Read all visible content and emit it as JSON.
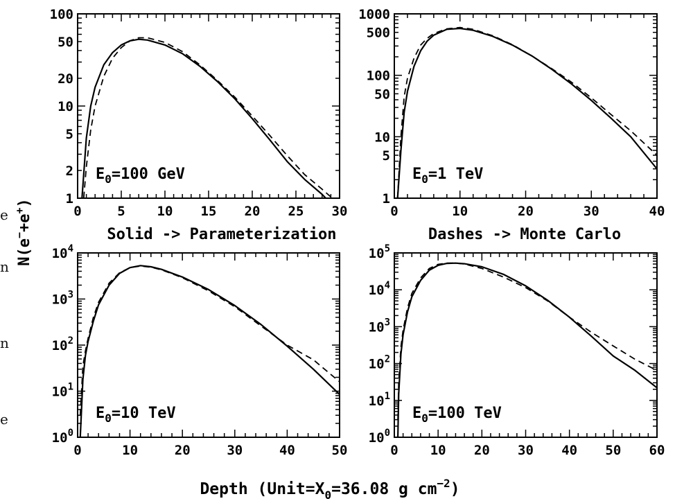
{
  "left_margin_fragments": [
    "e",
    "n",
    "n",
    "e"
  ],
  "ylabel": {
    "base": "N(e",
    "sup1": "−",
    "mid": "+e",
    "sup2": "+",
    "end": ")"
  },
  "xlabel": {
    "pre": "Depth (Unit=X",
    "sub": "0",
    "mid": "=36.08 g cm",
    "sup": "−2",
    "end": ")"
  },
  "notes": {
    "solid": "Solid -> Parameterization",
    "dashes": "Dashes -> Monte Carlo"
  },
  "chart_data": [
    {
      "type": "line",
      "panel": "top-left",
      "energy_label": {
        "base": "E",
        "sub": "0",
        "rest": "=100 GeV"
      },
      "xlim": [
        0,
        30
      ],
      "ylim": [
        1,
        100
      ],
      "yscale": "log",
      "xticks": [
        0,
        5,
        10,
        15,
        20,
        25,
        30
      ],
      "xtick_labels": [
        "0",
        "5",
        "10",
        "15",
        "20",
        "25",
        "30"
      ],
      "yticks": [
        1,
        2,
        5,
        10,
        20,
        50,
        100
      ],
      "ytick_labels": [
        "1",
        "2",
        "5",
        "10",
        "20",
        "50",
        "100"
      ],
      "series": [
        {
          "style": "solid",
          "x": [
            0.5,
            1,
            1.5,
            2,
            3,
            4,
            5,
            6,
            7,
            8,
            10,
            12,
            14,
            16,
            18,
            20,
            22,
            24,
            26,
            28,
            30
          ],
          "y": [
            1.0,
            4.5,
            10,
            16,
            28,
            38,
            46,
            51,
            53,
            52,
            46,
            37,
            27,
            18.5,
            12,
            7.3,
            4.3,
            2.5,
            1.6,
            1.1,
            0.7
          ]
        },
        {
          "style": "dashed",
          "x": [
            0.5,
            1,
            1.5,
            2,
            3,
            4,
            5,
            6,
            7,
            8,
            10,
            12,
            14,
            16,
            18,
            20,
            22,
            24,
            26,
            28,
            30
          ],
          "y": [
            0.6,
            2.2,
            5.5,
            10,
            21,
            33,
            43,
            51,
            55,
            55,
            49,
            39,
            28,
            19,
            12.5,
            7.8,
            4.8,
            2.9,
            1.8,
            1.25,
            0.85
          ]
        }
      ]
    },
    {
      "type": "line",
      "panel": "top-right",
      "energy_label": {
        "base": "E",
        "sub": "0",
        "rest": "=1 TeV"
      },
      "xlim": [
        0,
        40
      ],
      "ylim": [
        1,
        1000
      ],
      "yscale": "log",
      "xticks": [
        0,
        10,
        20,
        30,
        40
      ],
      "xtick_labels": [
        "0",
        "10",
        "20",
        "30",
        "40"
      ],
      "yticks": [
        1,
        5,
        10,
        50,
        100,
        500,
        1000
      ],
      "ytick_labels": [
        "1",
        "5",
        "10",
        "50",
        "100",
        "500",
        "1000"
      ],
      "series": [
        {
          "style": "solid",
          "x": [
            0.5,
            1,
            1.5,
            2,
            3,
            4,
            5,
            6,
            8,
            10,
            12,
            15,
            18,
            21,
            24,
            27,
            30,
            33,
            36,
            40
          ],
          "y": [
            1.0,
            6,
            25,
            55,
            140,
            250,
            360,
            450,
            560,
            580,
            540,
            430,
            310,
            205,
            125,
            72,
            39,
            20,
            10,
            3.0
          ]
        },
        {
          "style": "dashed",
          "x": [
            0.5,
            1,
            1.5,
            2,
            3,
            4,
            5,
            6,
            8,
            10,
            12,
            15,
            18,
            21,
            24,
            27,
            30,
            33,
            36,
            40
          ],
          "y": [
            1.0,
            10,
            45,
            90,
            190,
            310,
            400,
            480,
            570,
            600,
            560,
            440,
            315,
            205,
            128,
            77,
            43,
            23,
            12.5,
            5.0
          ]
        }
      ]
    },
    {
      "type": "line",
      "panel": "bottom-left",
      "energy_label": {
        "base": "E",
        "sub": "0",
        "rest": "=10 TeV"
      },
      "xlim": [
        0,
        50
      ],
      "ylim": [
        1,
        10000
      ],
      "yscale": "log",
      "xticks": [
        0,
        10,
        20,
        30,
        40,
        50
      ],
      "xtick_labels": [
        "0",
        "10",
        "20",
        "30",
        "40",
        "50"
      ],
      "yticks": [
        1,
        10,
        100,
        1000,
        10000
      ],
      "ytick_labels": [
        {
          "b": "10",
          "e": "0"
        },
        {
          "b": "10",
          "e": "1"
        },
        {
          "b": "10",
          "e": "2"
        },
        {
          "b": "10",
          "e": "3"
        },
        {
          "b": "10",
          "e": "4"
        }
      ],
      "series": [
        {
          "style": "solid",
          "x": [
            0.5,
            1,
            1.5,
            2,
            3,
            4,
            6,
            8,
            10,
            12,
            14,
            16,
            20,
            25,
            30,
            35,
            40,
            45,
            50
          ],
          "y": [
            1.0,
            18,
            60,
            120,
            330,
            750,
            2000,
            3600,
            4800,
            5300,
            5000,
            4400,
            3000,
            1600,
            720,
            280,
            95,
            30,
            8.5
          ]
        },
        {
          "style": "dashed",
          "x": [
            0.5,
            1,
            1.5,
            2,
            3,
            4,
            6,
            8,
            10,
            12,
            14,
            16,
            20,
            25,
            30,
            35,
            40,
            45,
            50
          ],
          "y": [
            3.0,
            35,
            75,
            140,
            400,
            850,
            2200,
            3700,
            4800,
            5200,
            4900,
            4300,
            2900,
            1500,
            680,
            260,
            100,
            48,
            16
          ]
        }
      ]
    },
    {
      "type": "line",
      "panel": "bottom-right",
      "energy_label": {
        "base": "E",
        "sub": "0",
        "rest": "=100 TeV"
      },
      "xlim": [
        0,
        60
      ],
      "ylim": [
        1,
        100000
      ],
      "yscale": "log",
      "xticks": [
        0,
        10,
        20,
        30,
        40,
        50,
        60
      ],
      "xtick_labels": [
        "0",
        "10",
        "20",
        "30",
        "40",
        "50",
        "60"
      ],
      "yticks": [
        1,
        10,
        100,
        1000,
        10000,
        100000
      ],
      "ytick_labels": [
        {
          "b": "10",
          "e": "0"
        },
        {
          "b": "10",
          "e": "1"
        },
        {
          "b": "10",
          "e": "2"
        },
        {
          "b": "10",
          "e": "3"
        },
        {
          "b": "10",
          "e": "4"
        },
        {
          "b": "10",
          "e": "5"
        }
      ],
      "series": [
        {
          "style": "solid",
          "x": [
            0.8,
            1,
            1.5,
            2,
            3,
            4,
            6,
            8,
            10,
            12,
            14,
            16,
            20,
            25,
            30,
            35,
            40,
            45,
            50,
            55,
            60
          ],
          "y": [
            1.0,
            15,
            180,
            600,
            2500,
            6500,
            18000,
            34000,
            46000,
            52000,
            53000,
            51000,
            42000,
            26000,
            12800,
            5200,
            1800,
            550,
            160,
            65,
            22
          ]
        },
        {
          "style": "dashed",
          "x": [
            0.8,
            1,
            1.5,
            2,
            3,
            4,
            6,
            8,
            10,
            12,
            14,
            16,
            20,
            25,
            30,
            35,
            40,
            45,
            50,
            55,
            60
          ],
          "y": [
            3.0,
            30,
            280,
            800,
            3200,
            8000,
            21000,
            38000,
            49000,
            53000,
            53000,
            50000,
            38000,
            22000,
            11500,
            5000,
            1800,
            700,
            300,
            130,
            65
          ]
        }
      ]
    }
  ]
}
